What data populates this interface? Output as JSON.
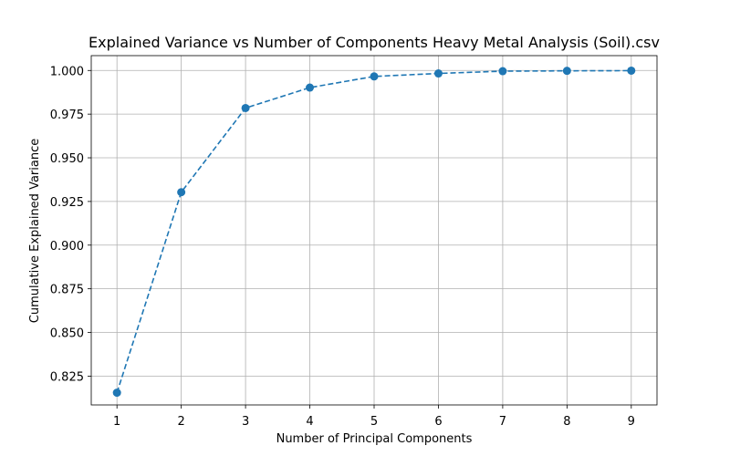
{
  "chart_data": {
    "type": "line",
    "title": "Explained Variance vs Number of Components Heavy Metal Analysis (Soil).csv",
    "xlabel": "Number of Principal Components",
    "ylabel": "Cumulative Explained Variance",
    "x": [
      1,
      2,
      3,
      4,
      5,
      6,
      7,
      8,
      9
    ],
    "y": [
      0.8155,
      0.9303,
      0.9785,
      0.9902,
      0.9966,
      0.9983,
      0.9996,
      0.9998,
      0.9999
    ],
    "xlim": [
      0.6,
      9.4
    ],
    "ylim": [
      0.8085,
      1.0085
    ],
    "xticks": [
      1,
      2,
      3,
      4,
      5,
      6,
      7,
      8,
      9
    ],
    "yticks": [
      0.825,
      0.85,
      0.875,
      0.9,
      0.925,
      0.95,
      0.975,
      1.0
    ],
    "ytick_labels": [
      "0.825",
      "0.850",
      "0.875",
      "0.900",
      "0.925",
      "0.950",
      "0.975",
      "1.000"
    ],
    "grid": true,
    "line_style": "dashed",
    "marker": "circle",
    "color": "#1f77b4"
  }
}
